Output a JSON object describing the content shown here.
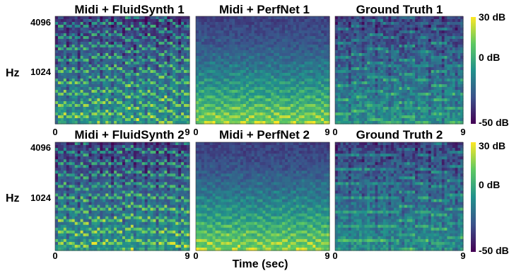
{
  "chart_data": {
    "type": "heatmap",
    "colormap": "viridis",
    "xlabel": "Time (sec)",
    "ylabel": "Hz",
    "xlim": [
      0,
      9
    ],
    "x_ticks": [
      "0",
      "9"
    ],
    "y_ticks": [
      "4096",
      "1024"
    ],
    "y_scale": "log",
    "colorbar": {
      "range_db": [
        -50,
        30
      ],
      "tick_labels": [
        "30 dB",
        "0 dB",
        "-50 dB"
      ]
    },
    "rows": [
      {
        "panels": [
          {
            "title": "Midi + FluidSynth 1",
            "style": "synth"
          },
          {
            "title": "Midi + PerfNet 1",
            "style": "perfnet"
          },
          {
            "title": "Ground Truth 1",
            "style": "truth"
          }
        ]
      },
      {
        "panels": [
          {
            "title": "Midi + FluidSynth 2",
            "style": "synth"
          },
          {
            "title": "Midi + PerfNet 2",
            "style": "perfnet"
          },
          {
            "title": "Ground Truth 2",
            "style": "truth"
          }
        ]
      }
    ]
  }
}
